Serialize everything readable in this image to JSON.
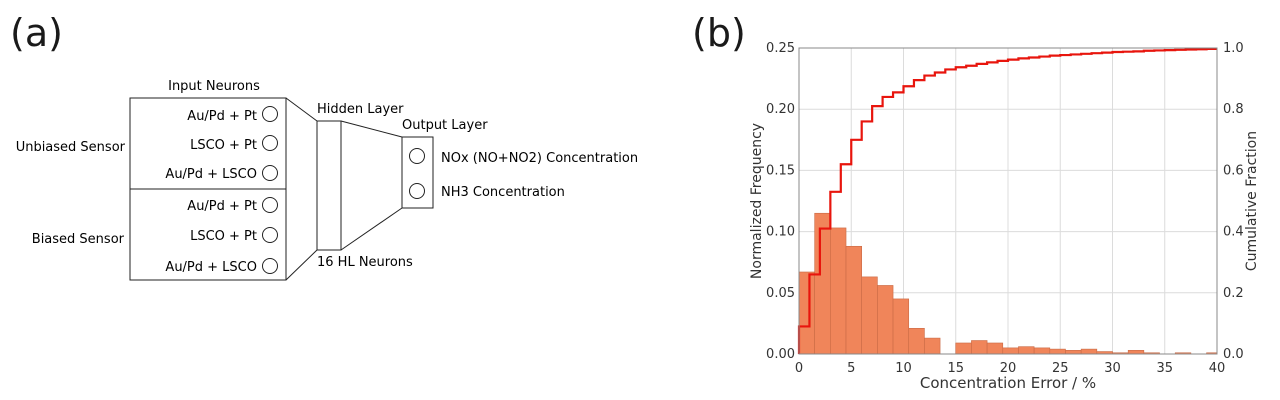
{
  "panel_a": {
    "label": "(a)",
    "input_header": "Input Neurons",
    "groups": [
      {
        "name": "Unbiased Sensor",
        "inputs": [
          "Au/Pd + Pt",
          "LSCO + Pt",
          "Au/Pd + LSCO"
        ]
      },
      {
        "name": "Biased Sensor",
        "inputs": [
          "Au/Pd + Pt",
          "LSCO + Pt",
          "Au/Pd + LSCO"
        ]
      }
    ],
    "hidden_label": "Hidden Layer",
    "hidden_neurons_label": "16 HL Neurons",
    "output_label": "Output Layer",
    "outputs": [
      "NOx (NO+NO2) Concentration",
      "NH3 Concentration"
    ]
  },
  "panel_b": {
    "label": "(b)"
  },
  "chart_data": {
    "type": "bar",
    "title": "",
    "xlabel": "Concentration Error / %",
    "ylabel": "Normalized Frequency",
    "y2label": "Cumulative Fraction",
    "xlim": [
      0,
      40
    ],
    "ylim": [
      0,
      0.25
    ],
    "y2lim": [
      0,
      1.0
    ],
    "xticks": [
      "0",
      "5",
      "10",
      "15",
      "20",
      "25",
      "30",
      "35",
      "40"
    ],
    "yticks": [
      "0.00",
      "0.05",
      "0.10",
      "0.15",
      "0.20",
      "0.25"
    ],
    "y2ticks": [
      "0.0",
      "0.2",
      "0.4",
      "0.6",
      "0.8",
      "1.0"
    ],
    "grid": true,
    "bin_width": 1.5,
    "bin_starts": [
      0,
      1.5,
      3,
      4.5,
      6,
      7.5,
      9,
      10.5,
      12,
      13.5,
      15,
      16.5,
      18,
      19.5,
      21,
      22.5,
      24,
      25.5,
      27,
      28.5,
      30,
      31.5,
      33,
      34.5,
      36,
      37.5,
      39
    ],
    "series": [
      {
        "name": "Normalized Frequency",
        "type": "bar",
        "color": "#f0855a",
        "values": [
          0.067,
          0.115,
          0.103,
          0.088,
          0.063,
          0.056,
          0.045,
          0.021,
          0.013,
          0.0,
          0.009,
          0.011,
          0.009,
          0.005,
          0.006,
          0.005,
          0.004,
          0.003,
          0.004,
          0.002,
          0.001,
          0.003,
          0.001,
          0.0,
          0.001,
          0.0,
          0.001
        ]
      },
      {
        "name": "Cumulative Fraction",
        "type": "step",
        "axis": "right",
        "color": "#e8150d",
        "x": [
          0,
          1,
          2,
          3,
          4,
          5,
          6,
          7,
          8,
          9,
          10,
          11,
          12,
          13,
          14,
          15,
          16,
          17,
          18,
          19,
          20,
          21,
          22,
          23,
          24,
          25,
          26,
          27,
          28,
          29,
          30,
          31,
          32,
          33,
          34,
          35,
          36,
          37,
          38,
          39,
          40
        ],
        "values": [
          0.09,
          0.26,
          0.41,
          0.53,
          0.62,
          0.7,
          0.76,
          0.81,
          0.84,
          0.855,
          0.875,
          0.895,
          0.91,
          0.92,
          0.93,
          0.937,
          0.942,
          0.948,
          0.953,
          0.958,
          0.962,
          0.966,
          0.969,
          0.972,
          0.975,
          0.977,
          0.979,
          0.981,
          0.983,
          0.985,
          0.987,
          0.988,
          0.989,
          0.991,
          0.992,
          0.993,
          0.994,
          0.995,
          0.996,
          0.997,
          0.998
        ]
      }
    ]
  }
}
